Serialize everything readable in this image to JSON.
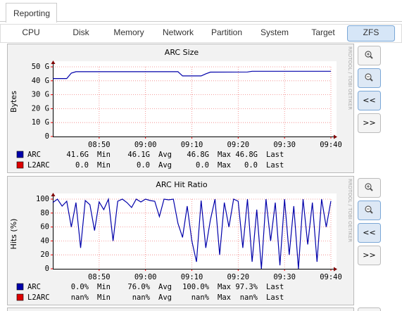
{
  "tabs": [
    "Reporting"
  ],
  "subtabs": [
    {
      "label": "CPU"
    },
    {
      "label": "Disk"
    },
    {
      "label": "Memory"
    },
    {
      "label": "Network"
    },
    {
      "label": "Partition"
    },
    {
      "label": "System"
    },
    {
      "label": "Target"
    },
    {
      "label": "ZFS",
      "active": true
    }
  ],
  "controls": {
    "back": "<<",
    "forward": ">>"
  },
  "chart_data": [
    {
      "type": "line",
      "title": "ARC Size",
      "y_label": "Bytes",
      "watermark": "RRDTOOL / TOBI OETIKER",
      "x": [
        "08:40",
        "08:43",
        "08:44",
        "08:45",
        "09:07",
        "09:08",
        "09:12",
        "09:13",
        "09:14",
        "09:22",
        "09:23",
        "09:40"
      ],
      "series": [
        {
          "name": "ARC",
          "color": "#0000aa",
          "values": [
            41.6,
            41.6,
            45.5,
            46.5,
            46.5,
            43.5,
            43.5,
            45.0,
            46.2,
            46.3,
            46.8,
            46.8
          ],
          "stats": [
            [
              "41.6G",
              "Min"
            ],
            [
              "46.1G",
              "Avg"
            ],
            [
              "46.8G",
              "Max"
            ],
            [
              "46.8G",
              "Last"
            ]
          ]
        },
        {
          "name": "L2ARC",
          "color": "#dd0000",
          "stats": [
            [
              "0.0",
              "Min"
            ],
            [
              "0.0",
              "Avg"
            ],
            [
              "0.0",
              "Max"
            ],
            [
              "0.0",
              "Last"
            ]
          ]
        }
      ],
      "xlim": [
        "08:40",
        "09:40"
      ],
      "xticks": [
        "08:50",
        "09:00",
        "09:10",
        "09:20",
        "09:30",
        "09:40"
      ],
      "ylim": [
        0,
        50
      ],
      "yticks": [
        0,
        {
          "value": 10,
          "label": "10 G"
        },
        {
          "value": 20,
          "label": "20 G"
        },
        {
          "value": 30,
          "label": "30 G"
        },
        {
          "value": 40,
          "label": "40 G"
        },
        {
          "value": 50,
          "label": "50 G"
        }
      ],
      "grid": true
    },
    {
      "type": "line",
      "title": "ARC Hit Ratio",
      "y_label": "Hits (%)",
      "watermark": "RRDTOOL / TOBI OETIKER",
      "x": [
        "08:40",
        "08:41",
        "08:42",
        "08:43",
        "08:44",
        "08:45",
        "08:46",
        "08:47",
        "08:48",
        "08:49",
        "08:50",
        "08:51",
        "08:52",
        "08:53",
        "08:54",
        "08:55",
        "08:56",
        "08:57",
        "08:58",
        "08:59",
        "09:00",
        "09:01",
        "09:02",
        "09:03",
        "09:04",
        "09:05",
        "09:06",
        "09:07",
        "09:08",
        "09:09",
        "09:10",
        "09:11",
        "09:12",
        "09:13",
        "09:14",
        "09:15",
        "09:16",
        "09:17",
        "09:18",
        "09:19",
        "09:20",
        "09:21",
        "09:22",
        "09:23",
        "09:24",
        "09:25",
        "09:26",
        "09:27",
        "09:28",
        "09:29",
        "09:30",
        "09:31",
        "09:32",
        "09:33",
        "09:34",
        "09:35",
        "09:36",
        "09:37",
        "09:38",
        "09:39",
        "09:40"
      ],
      "series": [
        {
          "name": "ARC",
          "color": "#0000aa",
          "values": [
            95,
            100,
            90,
            97,
            60,
            95,
            30,
            98,
            92,
            55,
            96,
            85,
            100,
            40,
            97,
            100,
            95,
            88,
            100,
            96,
            100,
            98,
            97,
            75,
            100,
            99,
            100,
            65,
            45,
            90,
            40,
            10,
            98,
            30,
            70,
            100,
            20,
            95,
            60,
            100,
            97,
            30,
            100,
            10,
            85,
            0,
            100,
            40,
            95,
            5,
            100,
            20,
            90,
            0,
            100,
            35,
            95,
            10,
            100,
            60,
            97.3
          ],
          "stats": [
            [
              "0.0%",
              "Min"
            ],
            [
              "76.0%",
              "Avg"
            ],
            [
              "100.0%",
              "Max"
            ],
            [
              "97.3%",
              "Last"
            ]
          ]
        },
        {
          "name": "L2ARC",
          "color": "#dd0000",
          "stats": [
            [
              "nan%",
              "Min"
            ],
            [
              "nan%",
              "Avg"
            ],
            [
              "nan%",
              "Max"
            ],
            [
              "nan%",
              "Last"
            ]
          ]
        }
      ],
      "xlim": [
        "08:40",
        "09:40"
      ],
      "xticks": [
        "08:50",
        "09:00",
        "09:10",
        "09:20",
        "09:30",
        "09:40"
      ],
      "ylim": [
        0,
        100
      ],
      "yticks": [
        0,
        20,
        40,
        60,
        80,
        100
      ],
      "grid": true
    }
  ]
}
